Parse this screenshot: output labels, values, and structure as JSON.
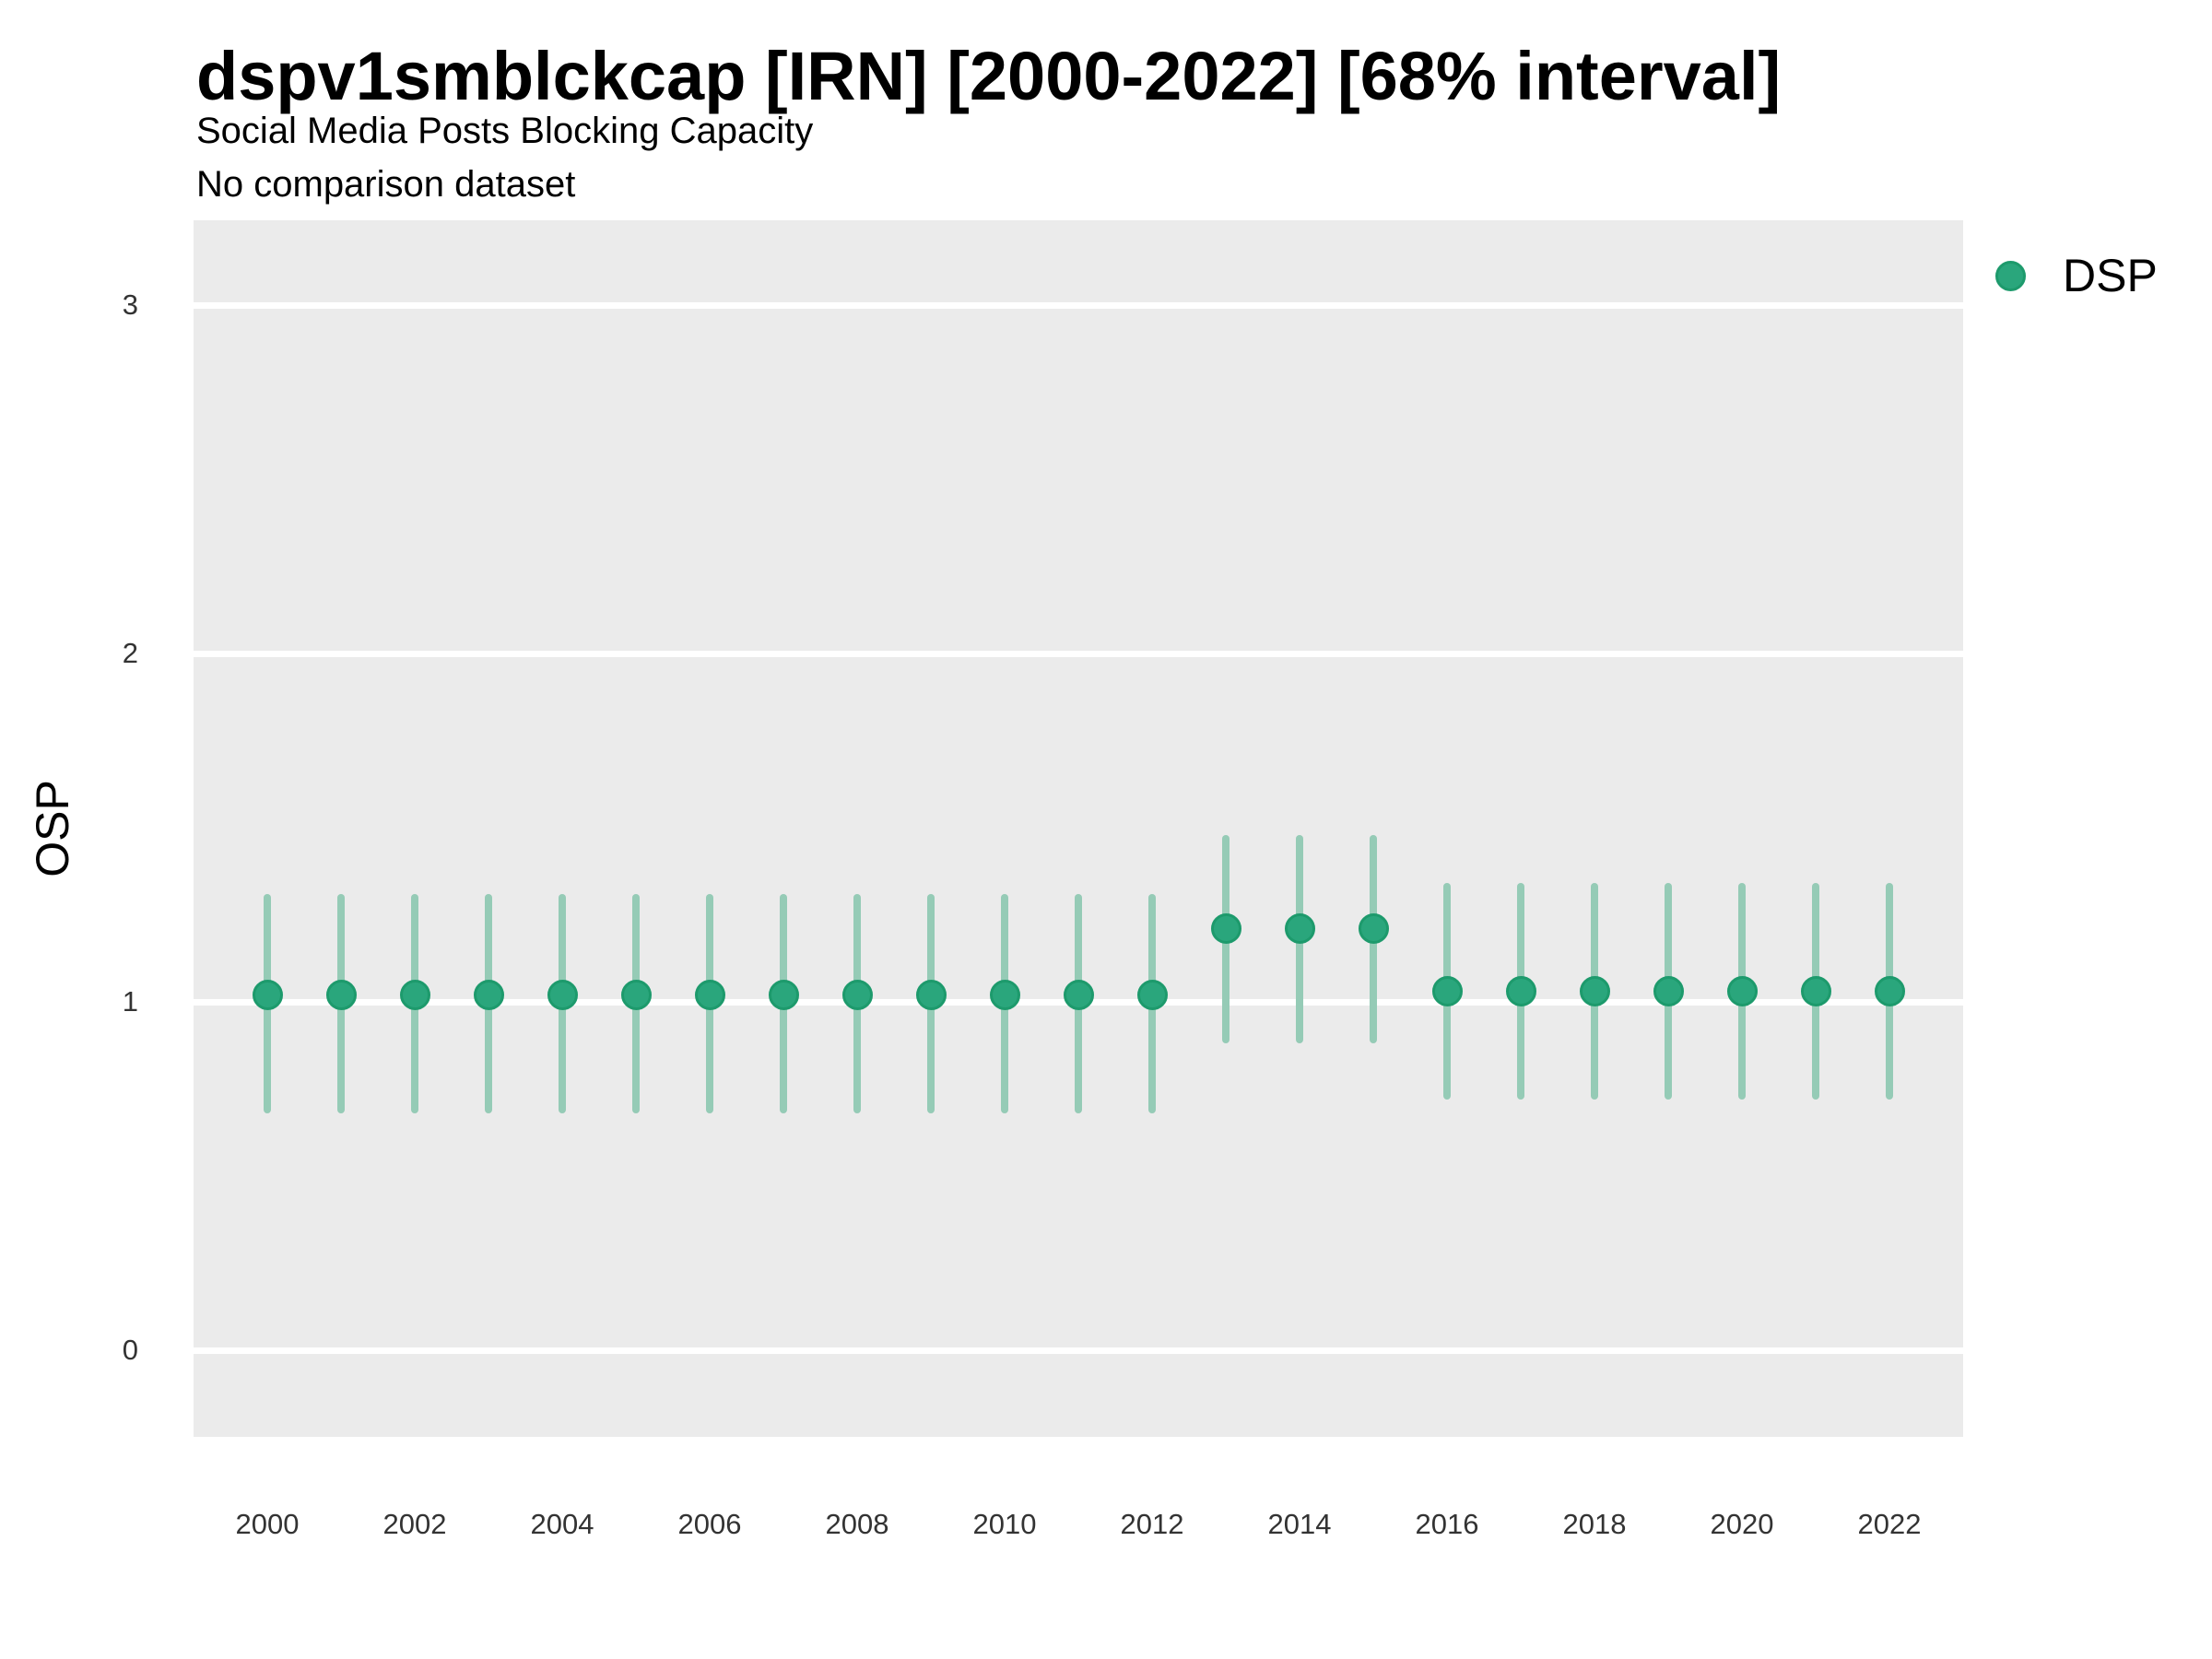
{
  "chart_data": {
    "type": "scatter",
    "subtype": "pointrange",
    "title": "dspv1smblckcap [IRN] [2000-2022] [68% interval]",
    "subtitle": "Social Media Posts Blocking Capacity",
    "note": "No comparison dataset",
    "xlabel": "",
    "ylabel": "OSP",
    "legend_label": "DSP",
    "legend_position": "right-top",
    "interval_level": "68%",
    "grid": "horizontal-major-only, no axis lines, no tick marks",
    "ylim": [
      -0.25,
      3.25
    ],
    "y_ticks": [
      0,
      1,
      2,
      3
    ],
    "x_ticks": [
      2000,
      2002,
      2004,
      2006,
      2008,
      2010,
      2012,
      2014,
      2016,
      2018,
      2020,
      2022
    ],
    "series": [
      {
        "name": "DSP",
        "points": [
          {
            "year": 2000,
            "value": 1.02,
            "lo": 0.68,
            "hi": 1.31
          },
          {
            "year": 2001,
            "value": 1.02,
            "lo": 0.68,
            "hi": 1.31
          },
          {
            "year": 2002,
            "value": 1.02,
            "lo": 0.68,
            "hi": 1.31
          },
          {
            "year": 2003,
            "value": 1.02,
            "lo": 0.68,
            "hi": 1.31
          },
          {
            "year": 2004,
            "value": 1.02,
            "lo": 0.68,
            "hi": 1.31
          },
          {
            "year": 2005,
            "value": 1.02,
            "lo": 0.68,
            "hi": 1.31
          },
          {
            "year": 2006,
            "value": 1.02,
            "lo": 0.68,
            "hi": 1.31
          },
          {
            "year": 2007,
            "value": 1.02,
            "lo": 0.68,
            "hi": 1.31
          },
          {
            "year": 2008,
            "value": 1.02,
            "lo": 0.68,
            "hi": 1.31
          },
          {
            "year": 2009,
            "value": 1.02,
            "lo": 0.68,
            "hi": 1.31
          },
          {
            "year": 2010,
            "value": 1.02,
            "lo": 0.68,
            "hi": 1.31
          },
          {
            "year": 2011,
            "value": 1.02,
            "lo": 0.68,
            "hi": 1.31
          },
          {
            "year": 2012,
            "value": 1.02,
            "lo": 0.68,
            "hi": 1.31
          },
          {
            "year": 2013,
            "value": 1.21,
            "lo": 0.88,
            "hi": 1.48
          },
          {
            "year": 2014,
            "value": 1.21,
            "lo": 0.88,
            "hi": 1.48
          },
          {
            "year": 2015,
            "value": 1.21,
            "lo": 0.88,
            "hi": 1.48
          },
          {
            "year": 2016,
            "value": 1.03,
            "lo": 0.72,
            "hi": 1.34
          },
          {
            "year": 2017,
            "value": 1.03,
            "lo": 0.72,
            "hi": 1.34
          },
          {
            "year": 2018,
            "value": 1.03,
            "lo": 0.72,
            "hi": 1.34
          },
          {
            "year": 2019,
            "value": 1.03,
            "lo": 0.72,
            "hi": 1.34
          },
          {
            "year": 2020,
            "value": 1.03,
            "lo": 0.72,
            "hi": 1.34
          },
          {
            "year": 2021,
            "value": 1.03,
            "lo": 0.72,
            "hi": 1.34
          },
          {
            "year": 2022,
            "value": 1.03,
            "lo": 0.72,
            "hi": 1.34
          }
        ]
      }
    ],
    "colors": {
      "point": "#2aa67c",
      "point_border": "#1d9a6c",
      "interval": "#95cbb6",
      "panel_bg": "#ebebeb",
      "gridline": "#ffffff",
      "title_text": "#000000",
      "tick_text": "#333333"
    }
  }
}
